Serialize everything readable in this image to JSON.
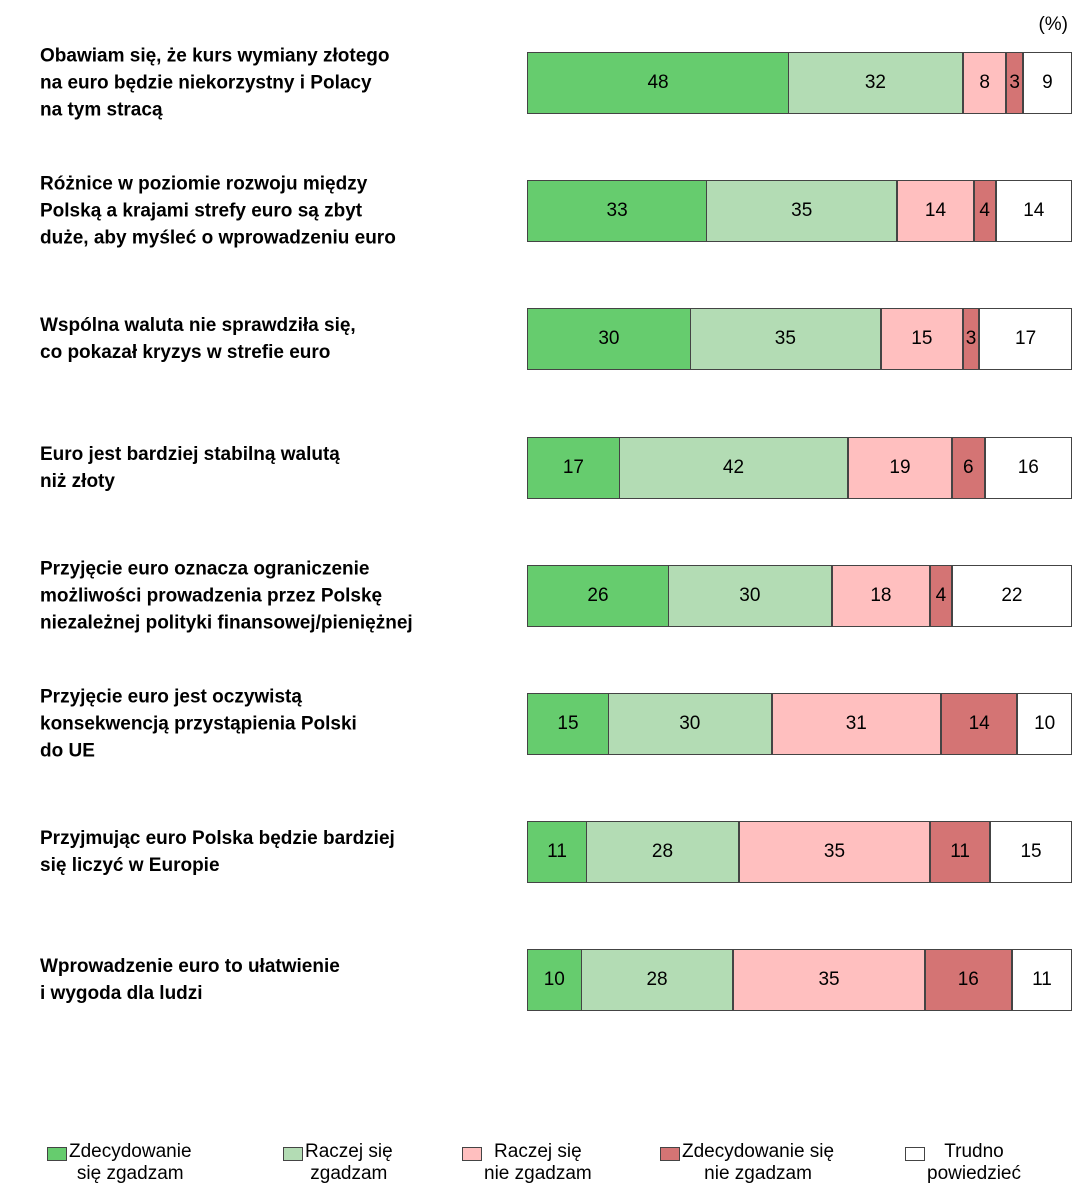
{
  "chart_data": {
    "type": "stacked-bar-horizontal",
    "unit_label": "(%)",
    "categories": [
      "Obawiam się, że kurs wymiany złotego\nna euro będzie niekorzystny i Polacy\nna tym stracą",
      "Różnice w poziomie rozwoju między\nPolską a krajami strefy euro są zbyt\nduże, aby myśleć o wprowadzeniu euro",
      "Wspólna waluta nie sprawdziła się,\nco pokazał kryzys w strefie euro",
      "Euro jest bardziej stabilną walutą\nniż złoty",
      "Przyjęcie euro oznacza ograniczenie\nmożliwości prowadzenia przez Polskę\nniezależnej polityki finansowej/pieniężnej",
      "Przyjęcie euro jest oczywistą\nkonsekwencją przystąpienia Polski\ndo UE",
      "Przyjmując euro Polska będzie bardziej\nsię liczyć w Europie",
      "Wprowadzenie euro to ułatwienie\ni wygoda dla ludzi"
    ],
    "series": [
      {
        "name": "Zdecydowanie\nsię zgadzam",
        "color": "#66cc6e",
        "values": [
          48,
          33,
          30,
          17,
          26,
          15,
          11,
          10
        ]
      },
      {
        "name": "Raczej się\nzgadzam",
        "color": "#b3dcb4",
        "values": [
          32,
          35,
          35,
          42,
          30,
          30,
          28,
          28
        ]
      },
      {
        "name": "Raczej się\nnie zgadzam",
        "color": "#ffbfbf",
        "values": [
          8,
          14,
          15,
          19,
          18,
          31,
          35,
          35
        ]
      },
      {
        "name": "Zdecydowanie się\nnie zgadzam",
        "color": "#d47474",
        "values": [
          3,
          4,
          3,
          6,
          4,
          14,
          11,
          16
        ]
      },
      {
        "name": "Trudno\npowiedzieć",
        "color": "#ffffff",
        "values": [
          9,
          14,
          17,
          16,
          22,
          10,
          15,
          11
        ]
      }
    ],
    "xlim": [
      0,
      100
    ]
  }
}
